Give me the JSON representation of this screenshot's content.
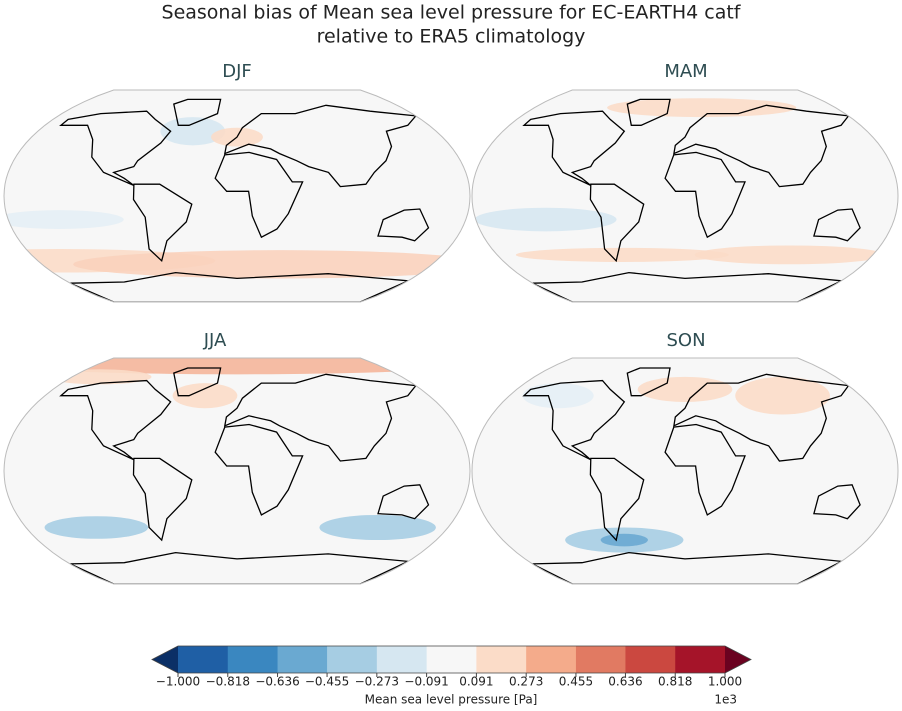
{
  "title": [
    "Seasonal bias of Mean sea level pressure for EC-EARTH4 catf",
    "relative to ERA5 climatology"
  ],
  "panels": [
    {
      "title": "DJF"
    },
    {
      "title": "MAM"
    },
    {
      "title": "JJA"
    },
    {
      "title": "SON"
    }
  ],
  "colorbar": {
    "label": "Mean sea level pressure [Pa]",
    "offset_label": "1e3",
    "lim": [
      -1,
      1
    ],
    "ticks": [
      {
        "value": -1,
        "label": "−1.000"
      },
      {
        "value": -0.818,
        "label": "−0.818"
      },
      {
        "value": -0.636,
        "label": "−0.636"
      },
      {
        "value": -0.455,
        "label": "−0.455"
      },
      {
        "value": -0.273,
        "label": "−0.273"
      },
      {
        "value": -0.091,
        "label": "−0.091"
      },
      {
        "value": 0.091,
        "label": "0.091"
      },
      {
        "value": 0.273,
        "label": "0.273"
      },
      {
        "value": 0.455,
        "label": "0.455"
      },
      {
        "value": 0.636,
        "label": "0.636"
      },
      {
        "value": 0.818,
        "label": "0.818"
      },
      {
        "value": 1,
        "label": "1.000"
      }
    ],
    "colors": [
      "#1f5fa5",
      "#3a87c0",
      "#6aa9d1",
      "#a6cde3",
      "#d6e7f1",
      "#f7f7f7",
      "#fbdcc8",
      "#f4ab8b",
      "#e17a62",
      "#cb4840",
      "#a51429"
    ],
    "under_color": "#0b2f66",
    "over_color": "#6a0220"
  }
}
